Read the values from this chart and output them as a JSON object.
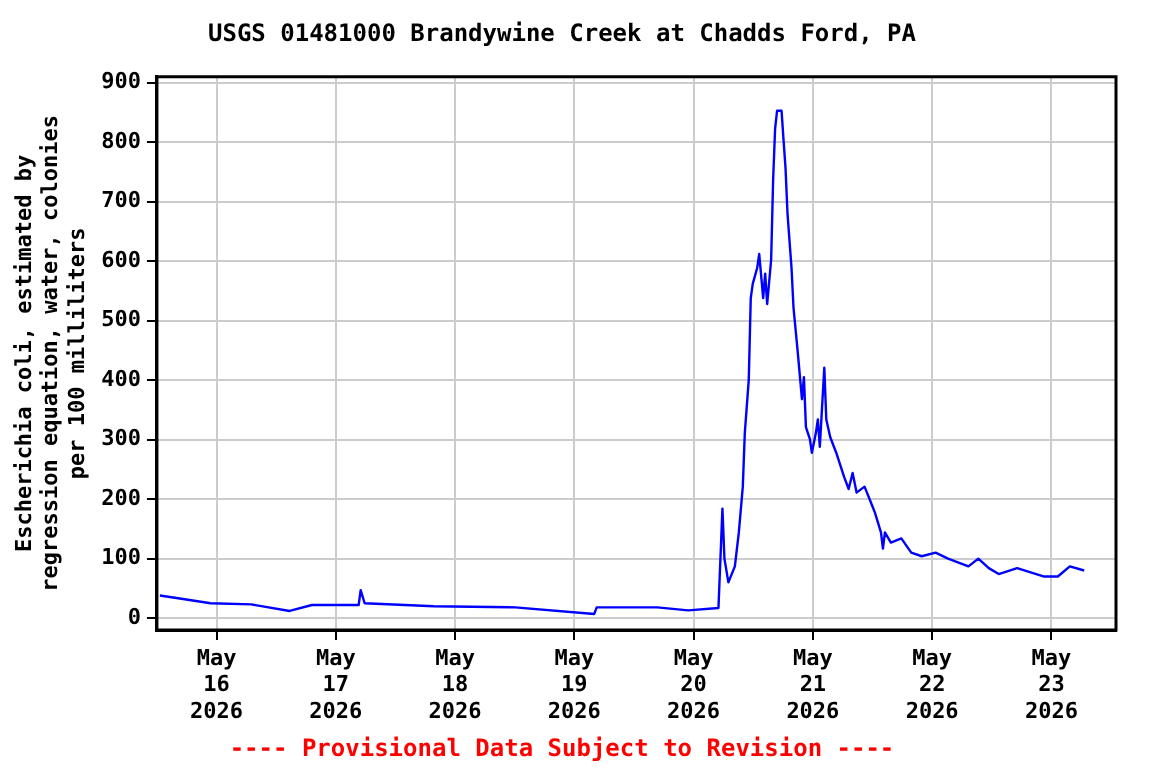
{
  "chart_data": {
    "type": "line",
    "title": "USGS 01481000 Brandywine Creek at Chadds Ford, PA",
    "ylabel": "Escherichia coli, estimated by regression equation, water, colonies per 100 milliliters",
    "annotations": [
      "---- Provisional Data Subject to Revision ----"
    ],
    "x": [
      "2026-05-15T12:36",
      "2026-05-15T16:36",
      "2026-05-15T22:48",
      "2026-05-16T07:00",
      "2026-05-16T14:42",
      "2026-05-16T19:12",
      "2026-05-17T04:36",
      "2026-05-17T05:00",
      "2026-05-17T05:48",
      "2026-05-17T19:42",
      "2026-05-18T12:06",
      "2026-05-19T04:00",
      "2026-05-19T04:30",
      "2026-05-19T16:42",
      "2026-05-19T22:54",
      "2026-05-20T05:00",
      "2026-05-20T05:48",
      "2026-05-20T06:12",
      "2026-05-20T07:00",
      "2026-05-20T08:18",
      "2026-05-20T09:06",
      "2026-05-20T09:54",
      "2026-05-20T10:18",
      "2026-05-20T11:06",
      "2026-05-20T11:30",
      "2026-05-20T11:54",
      "2026-05-20T12:48",
      "2026-05-20T13:12",
      "2026-05-20T14:00",
      "2026-05-20T14:24",
      "2026-05-20T14:48",
      "2026-05-20T15:36",
      "2026-05-20T16:00",
      "2026-05-20T16:24",
      "2026-05-20T16:48",
      "2026-05-20T17:42",
      "2026-05-20T18:06",
      "2026-05-20T18:30",
      "2026-05-20T18:54",
      "2026-05-20T19:42",
      "2026-05-20T20:06",
      "2026-05-20T20:54",
      "2026-05-20T21:48",
      "2026-05-20T22:12",
      "2026-05-20T22:36",
      "2026-05-20T23:24",
      "2026-05-20T23:48",
      "2026-05-21T00:36",
      "2026-05-21T01:00",
      "2026-05-21T01:24",
      "2026-05-21T02:18",
      "2026-05-21T02:42",
      "2026-05-21T03:30",
      "2026-05-21T04:42",
      "2026-05-21T06:18",
      "2026-05-21T07:12",
      "2026-05-21T08:00",
      "2026-05-21T08:48",
      "2026-05-21T10:24",
      "2026-05-21T11:42",
      "2026-05-21T12:30",
      "2026-05-21T13:42",
      "2026-05-21T14:06",
      "2026-05-21T14:30",
      "2026-05-21T15:42",
      "2026-05-21T17:48",
      "2026-05-21T19:48",
      "2026-05-21T21:54",
      "2026-05-22T00:42",
      "2026-05-22T03:12",
      "2026-05-22T07:18",
      "2026-05-22T09:18",
      "2026-05-22T11:24",
      "2026-05-22T13:24",
      "2026-05-22T17:06",
      "2026-05-22T22:24",
      "2026-05-23T01:18",
      "2026-05-23T03:42",
      "2026-05-23T06:36"
    ],
    "series": [
      {
        "color": "#0000ff",
        "values": [
          38,
          33,
          25,
          23,
          12,
          22,
          22,
          47,
          25,
          20,
          18,
          7,
          18,
          18,
          13,
          17,
          184,
          100,
          60,
          87,
          144,
          221,
          311,
          401,
          538,
          562,
          589,
          612,
          538,
          579,
          528,
          602,
          736,
          823,
          853,
          853,
          803,
          756,
          679,
          589,
          522,
          452,
          368,
          405,
          321,
          301,
          278,
          311,
          334,
          288,
          421,
          334,
          304,
          278,
          237,
          217,
          244,
          211,
          221,
          194,
          177,
          144,
          117,
          144,
          127,
          134,
          110,
          104,
          110,
          100,
          87,
          100,
          84,
          74,
          84,
          70,
          70,
          87,
          80
        ]
      }
    ],
    "xlim": [
      "2026-05-15T12:00",
      "2026-05-23T13:00"
    ],
    "xticks": [
      {
        "value": "2026-05-16",
        "label": "May 16 2026"
      },
      {
        "value": "2026-05-17",
        "label": "May 17 2026"
      },
      {
        "value": "2026-05-18",
        "label": "May 18 2026"
      },
      {
        "value": "2026-05-19",
        "label": "May 19 2026"
      },
      {
        "value": "2026-05-20",
        "label": "May 20 2026"
      },
      {
        "value": "2026-05-21",
        "label": "May 21 2026"
      },
      {
        "value": "2026-05-22",
        "label": "May 22 2026"
      },
      {
        "value": "2026-05-23",
        "label": "May 23 2026"
      }
    ],
    "ylim": [
      -20,
      910
    ],
    "yticks": [
      0,
      100,
      200,
      300,
      400,
      500,
      600,
      700,
      800,
      900
    ],
    "grid": true,
    "marker": "none",
    "line_style": "solid",
    "legend": false
  }
}
